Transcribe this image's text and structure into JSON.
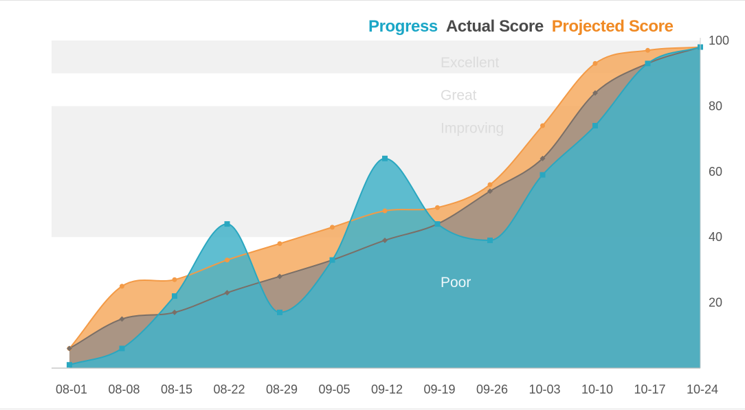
{
  "legend": {
    "progress": "Progress",
    "actual": "Actual Score",
    "projected": "Projected Score"
  },
  "colors": {
    "progress_fill": "#43b3c9",
    "progress_line": "#2aa7c0",
    "actual": "#7a6f67",
    "actual_fill": "#9c8f86",
    "projected": "#f39a46",
    "projected_fill": "#f6aa60",
    "band_shade": "#f1f1f1",
    "band_text": "#dcdcdc",
    "legend_progress": "#1aa6c6",
    "legend_actual": "#4a4a4a",
    "legend_projected": "#f08a24"
  },
  "chart_data": {
    "type": "area",
    "categories": [
      "08-01",
      "08-08",
      "08-15",
      "08-22",
      "08-29",
      "09-05",
      "09-12",
      "09-19",
      "09-26",
      "10-03",
      "10-10",
      "10-17",
      "10-24"
    ],
    "series": [
      {
        "name": "Progress",
        "values": [
          1,
          6,
          22,
          44,
          17,
          33,
          64,
          44,
          39,
          59,
          74,
          93,
          98
        ]
      },
      {
        "name": "Actual Score",
        "values": [
          6,
          15,
          17,
          23,
          28,
          33,
          39,
          44,
          54,
          64,
          84,
          93,
          98
        ]
      },
      {
        "name": "Projected Score",
        "values": [
          6,
          25,
          27,
          33,
          38,
          43,
          48,
          49,
          56,
          74,
          93,
          97,
          98
        ]
      }
    ],
    "bands": [
      {
        "label": "Poor",
        "from": 0,
        "to": 40
      },
      {
        "label": "Improving",
        "from": 40,
        "to": 80
      },
      {
        "label": "Great",
        "from": 80,
        "to": 90
      },
      {
        "label": "Excellent",
        "from": 90,
        "to": 100
      }
    ],
    "yticks": [
      20,
      40,
      60,
      80,
      100
    ],
    "ylim": [
      0,
      100
    ],
    "y_axis_side": "right",
    "legend_position": "top-right"
  }
}
